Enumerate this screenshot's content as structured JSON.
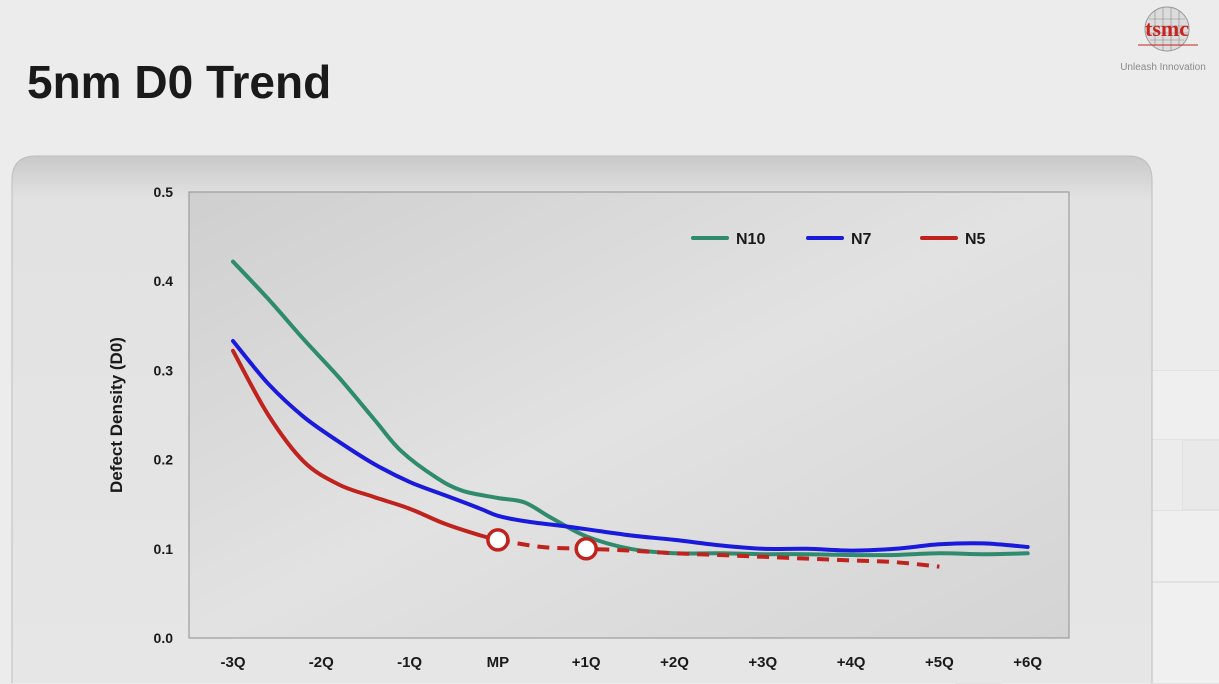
{
  "slide": {
    "title": "5nm D0 Trend"
  },
  "logo": {
    "wordmark": "tsmc",
    "tagline": "Unleash Innovation"
  },
  "colors": {
    "N10": "#2e8b6e",
    "N7": "#1a1adc",
    "N5": "#c0221e",
    "plot_background": "#d6d6d6",
    "panel_background": "#e4e4e4"
  },
  "chart_data": {
    "type": "line",
    "title": "",
    "xlabel": "",
    "ylabel": "Defect Density (D0)",
    "categories": [
      "-3Q",
      "-2Q",
      "-1Q",
      "MP",
      "+1Q",
      "+2Q",
      "+3Q",
      "+4Q",
      "+5Q",
      "+6Q"
    ],
    "ylim": [
      0.0,
      0.5
    ],
    "yticks": [
      "0.0",
      "0.1",
      "0.2",
      "0.3",
      "0.4",
      "0.5"
    ],
    "grid": false,
    "legend_position": "top-right",
    "series": [
      {
        "name": "N10",
        "style": "solid",
        "x": [
          0,
          0.4,
          0.8,
          1.2,
          1.6,
          1.9,
          2.3,
          2.6,
          3.0,
          3.3,
          3.6,
          4.0,
          4.5,
          5.0,
          5.5,
          6.0,
          6.5,
          7.0,
          7.5,
          8.0,
          8.5,
          9.0
        ],
        "y": [
          0.422,
          0.38,
          0.335,
          0.292,
          0.245,
          0.21,
          0.18,
          0.165,
          0.157,
          0.152,
          0.135,
          0.114,
          0.1,
          0.095,
          0.095,
          0.094,
          0.094,
          0.093,
          0.093,
          0.095,
          0.094,
          0.095
        ]
      },
      {
        "name": "N7",
        "style": "solid",
        "x": [
          0,
          0.4,
          0.8,
          1.2,
          1.6,
          2.0,
          2.4,
          2.8,
          3.0,
          3.3,
          3.7,
          4.0,
          4.5,
          5.0,
          5.5,
          6.0,
          6.5,
          7.0,
          7.5,
          8.0,
          8.5,
          9.0
        ],
        "y": [
          0.333,
          0.285,
          0.248,
          0.22,
          0.195,
          0.175,
          0.16,
          0.145,
          0.137,
          0.131,
          0.126,
          0.122,
          0.115,
          0.11,
          0.104,
          0.1,
          0.1,
          0.098,
          0.1,
          0.105,
          0.106,
          0.102
        ]
      },
      {
        "name": "N5",
        "style": "solid",
        "x": [
          0,
          0.4,
          0.8,
          1.2,
          1.6,
          2.0,
          2.4,
          2.8,
          3.0
        ],
        "y": [
          0.322,
          0.25,
          0.198,
          0.172,
          0.158,
          0.145,
          0.128,
          0.115,
          0.11
        ]
      },
      {
        "name": "N5",
        "style": "dashed",
        "x": [
          3.0,
          3.5,
          4.0,
          4.5,
          5.0,
          5.5,
          6.0,
          6.5,
          7.0,
          7.5,
          8.0
        ],
        "y": [
          0.11,
          0.102,
          0.1,
          0.098,
          0.095,
          0.093,
          0.091,
          0.089,
          0.087,
          0.085,
          0.08
        ]
      }
    ],
    "markers": [
      {
        "series": "N5",
        "x": 3.0,
        "y": 0.11
      },
      {
        "series": "N5",
        "x": 4.0,
        "y": 0.1
      }
    ]
  }
}
